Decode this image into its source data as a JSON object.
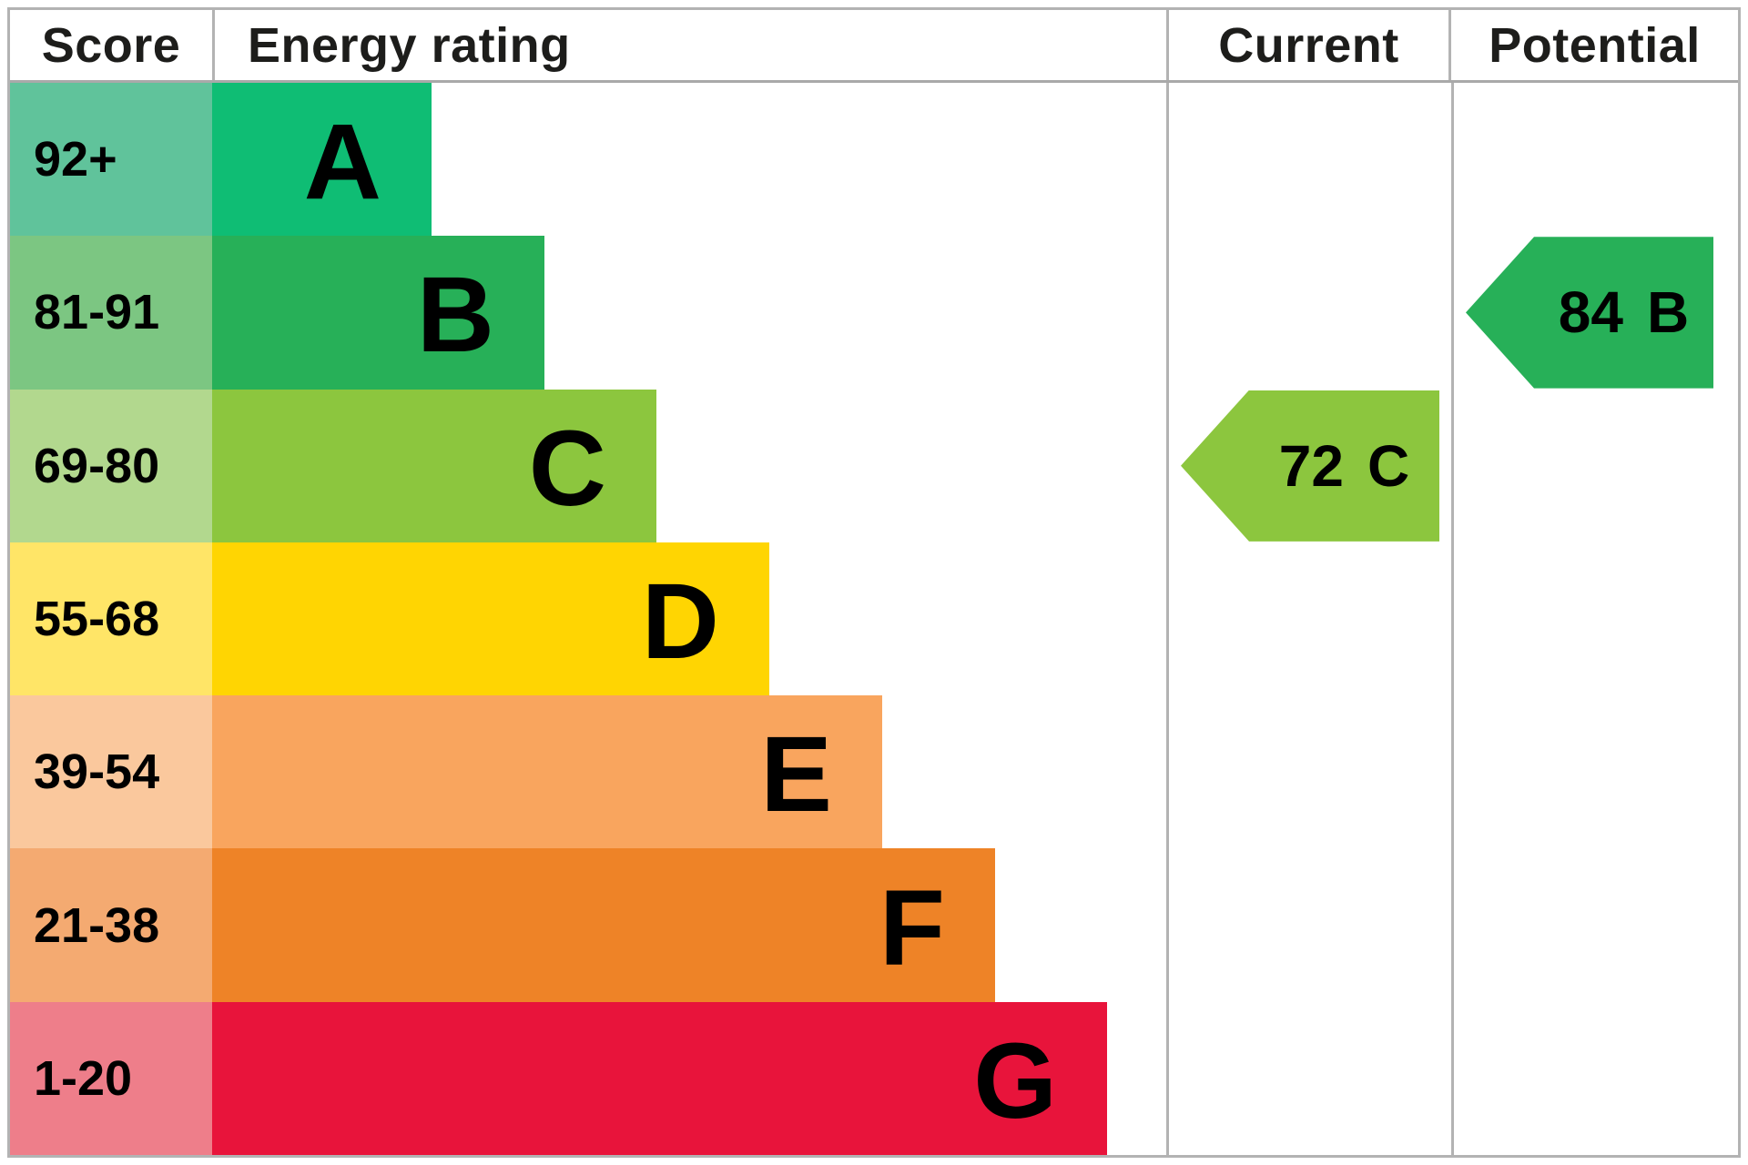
{
  "header": {
    "score": "Score",
    "energy_rating": "Energy rating",
    "current": "Current",
    "potential": "Potential"
  },
  "bands": [
    {
      "letter": "A",
      "score_range": "92+",
      "bar_color": "#0fbd74",
      "score_cell_color": "#60c39b"
    },
    {
      "letter": "B",
      "score_range": "81-91",
      "bar_color": "#27b058",
      "score_cell_color": "#7cc682"
    },
    {
      "letter": "C",
      "score_range": "69-80",
      "bar_color": "#8cc63e",
      "score_cell_color": "#b2d88e"
    },
    {
      "letter": "D",
      "score_range": "55-68",
      "bar_color": "#ffd502",
      "score_cell_color": "#ffe567"
    },
    {
      "letter": "E",
      "score_range": "39-54",
      "bar_color": "#f9a55e",
      "score_cell_color": "#fac89d"
    },
    {
      "letter": "F",
      "score_range": "21-38",
      "bar_color": "#ee8327",
      "score_cell_color": "#f4aa71"
    },
    {
      "letter": "G",
      "score_range": "1-20",
      "bar_color": "#e8143b",
      "score_cell_color": "#ee7e8a"
    }
  ],
  "current": {
    "value": "72",
    "letter": "C",
    "band_index": 2,
    "color": "#8cc63e"
  },
  "potential": {
    "value": "84",
    "letter": "B",
    "band_index": 1,
    "color": "#27b058"
  },
  "border_color": "#b3b3b3",
  "chart_data": {
    "type": "bar",
    "title": "Energy rating",
    "categories": [
      "A",
      "B",
      "C",
      "D",
      "E",
      "F",
      "G"
    ],
    "score_ranges": [
      "92+",
      "81-91",
      "69-80",
      "55-68",
      "39-54",
      "21-38",
      "1-20"
    ],
    "band_colors": [
      "#0fbd74",
      "#27b058",
      "#8cc63e",
      "#ffd502",
      "#f9a55e",
      "#ee8327",
      "#e8143b"
    ],
    "bar_lengths_step": "each band bar grows one equal step longer from A to G",
    "current": {
      "score": 72,
      "band": "C"
    },
    "potential": {
      "score": 84,
      "band": "B"
    },
    "legend_position": "none",
    "grid": false
  }
}
